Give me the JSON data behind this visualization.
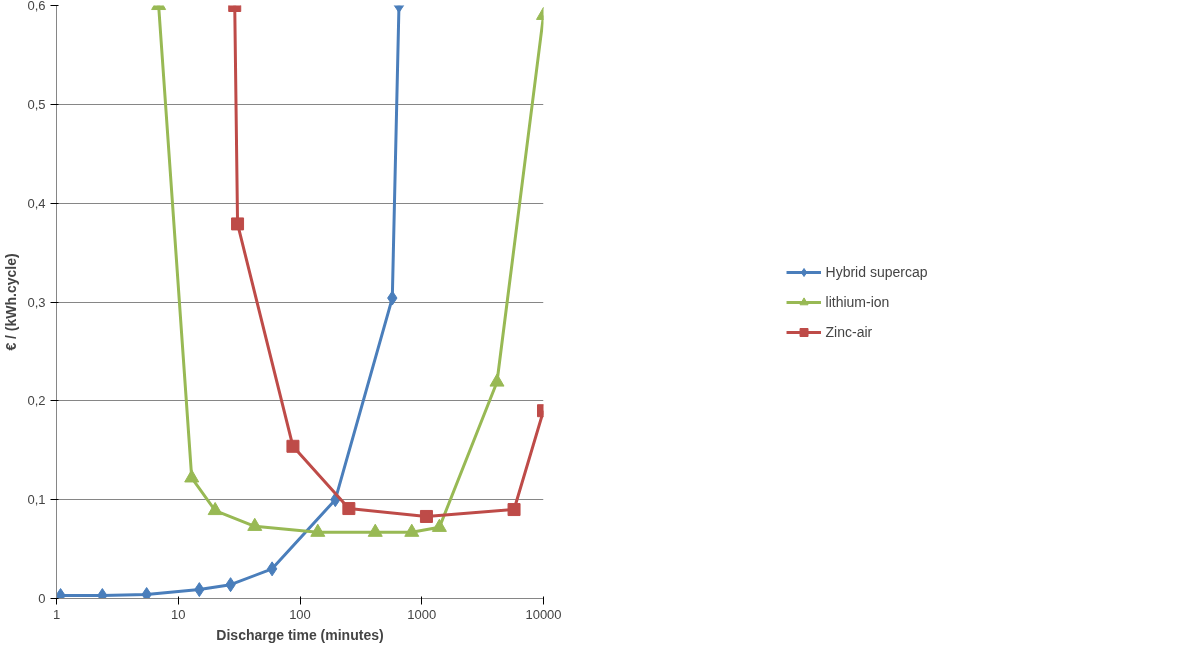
{
  "chart_data": {
    "type": "line",
    "xlabel": "Discharge time (minutes)",
    "ylabel": "€ / (kWh.cycle)",
    "log": "x",
    "xlim": [
      1,
      10000
    ],
    "xticks": [
      1,
      10,
      100,
      1000,
      10000
    ],
    "ylim": [
      0,
      0.6
    ],
    "yticks": [
      {
        "value": 0,
        "label": "0"
      },
      {
        "value": 0.1,
        "label": "0,1"
      },
      {
        "value": 0.2,
        "label": "0,2"
      },
      {
        "value": 0.3,
        "label": "0,3"
      },
      {
        "value": 0.4,
        "label": "0,4"
      },
      {
        "value": 0.5,
        "label": "0,5"
      },
      {
        "value": 0.6,
        "label": "0,6"
      }
    ],
    "grid": "y",
    "legend": "right",
    "series": [
      {
        "name": "Hybrid supercap",
        "color": "#4a7ebb",
        "marker": "diamond",
        "x": [
          1.08,
          2.38,
          5.5,
          14.9,
          26.9,
          59,
          195,
          573,
          650
        ],
        "values": [
          0.003,
          0.003,
          0.004,
          0.009,
          0.014,
          0.03,
          0.1,
          0.304,
          0.6
        ]
      },
      {
        "name": "lithium-ion",
        "color": "#98b954",
        "marker": "triangle",
        "x": [
          6.9,
          12.9,
          20.1,
          42.5,
          140,
          415,
          828,
          1396,
          4150,
          10000
        ],
        "values": [
          0.6,
          0.122,
          0.089,
          0.073,
          0.067,
          0.067,
          0.067,
          0.072,
          0.219,
          0.59
        ]
      },
      {
        "name": "Zinc-air",
        "color": "#be4b48",
        "marker": "square",
        "x": [
          29.1,
          30.7,
          87.5,
          252,
          1093,
          5730,
          10000
        ],
        "values": [
          0.6,
          0.379,
          0.154,
          0.091,
          0.083,
          0.09,
          0.19
        ]
      }
    ]
  }
}
